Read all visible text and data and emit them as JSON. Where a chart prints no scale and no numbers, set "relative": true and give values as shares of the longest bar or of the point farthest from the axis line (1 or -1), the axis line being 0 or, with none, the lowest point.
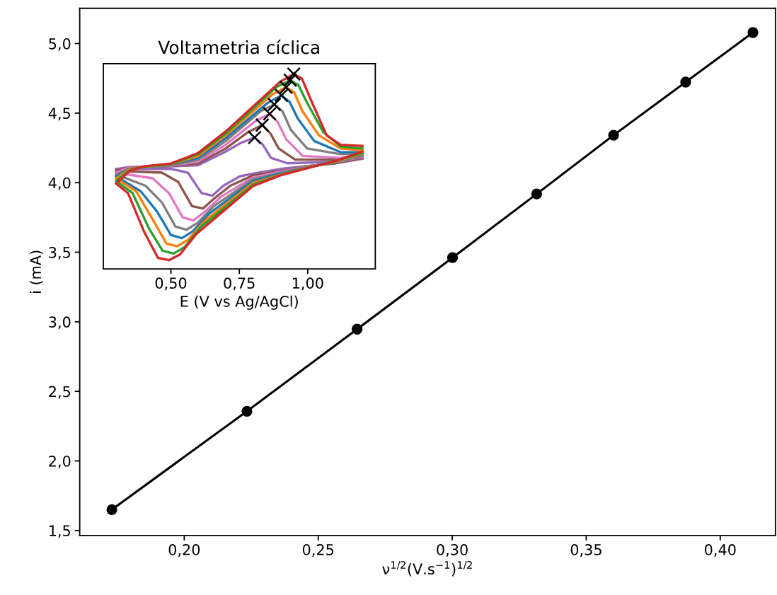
{
  "chart_data": [
    {
      "type": "line",
      "xlabel": "ν$^{1/2}$(V.s$^{−1}$)$^{1/2}$",
      "ylabel": "i (mA)",
      "xlim": [
        0.161,
        0.4206
      ],
      "ylim": [
        1.464,
        5.253
      ],
      "xticks": [
        {
          "value": 0.2,
          "label": "0,20"
        },
        {
          "value": 0.25,
          "label": "0,25"
        },
        {
          "value": 0.3,
          "label": "0,30"
        },
        {
          "value": 0.35,
          "label": "0,35"
        },
        {
          "value": 0.4,
          "label": "0,40"
        }
      ],
      "yticks": [
        {
          "value": 1.5,
          "label": "1,5"
        },
        {
          "value": 2.0,
          "label": "2,0"
        },
        {
          "value": 2.5,
          "label": "2,5"
        },
        {
          "value": 3.0,
          "label": "3,0"
        },
        {
          "value": 3.5,
          "label": "3,5"
        },
        {
          "value": 4.0,
          "label": "4,0"
        },
        {
          "value": 4.5,
          "label": "4,5"
        },
        {
          "value": 5.0,
          "label": "5,0"
        }
      ],
      "grid": false,
      "marker": "circle",
      "line_style": "solid",
      "series": [
        {
          "color": "#000000",
          "x": [
            0.173,
            0.2234,
            0.2645,
            0.3001,
            0.3315,
            0.3602,
            0.3871,
            0.4122
          ],
          "values": [
            1.65,
            2.357,
            2.947,
            3.461,
            3.919,
            4.341,
            4.723,
            5.079
          ]
        }
      ]
    },
    {
      "type": "line",
      "title": "Voltametria cíclica",
      "xlabel": "E (V vs Ag/AgCl)",
      "relative": true,
      "xlim": [
        0.253,
        1.247
      ],
      "xticks": [
        {
          "value": 0.5,
          "label": "0,50"
        },
        {
          "value": 0.75,
          "label": "0,75"
        },
        {
          "value": 1.0,
          "label": "1,00"
        }
      ],
      "tick_labels": "x",
      "grid": false,
      "marker": "none",
      "line_style": "solid",
      "series": [
        {
          "color": "#9467bd",
          "x": [
            0.3,
            0.35,
            0.4,
            0.5,
            0.6,
            0.7,
            0.756,
            0.806,
            0.836,
            0.866,
            0.926,
            1.12,
            1.2
          ],
          "values": [
            0.513,
            0.523,
            0.523,
            0.526,
            0.532,
            0.602,
            0.647,
            0.674,
            0.637,
            0.57,
            0.542,
            0.551,
            0.58
          ]
        },
        {
          "color": "#9467bd",
          "x": [
            0.3,
            0.502,
            0.562,
            0.612,
            0.652,
            0.692,
            0.752,
            0.8,
            0.9,
            1.0,
            1.1,
            1.2
          ],
          "values": [
            0.513,
            0.513,
            0.494,
            0.389,
            0.376,
            0.427,
            0.475,
            0.489,
            0.513,
            0.528,
            0.542,
            0.565
          ]
        },
        {
          "color": "#8c564b",
          "x": [
            0.3,
            0.35,
            0.4,
            0.5,
            0.6,
            0.7,
            0.784,
            0.834,
            0.864,
            0.894,
            0.954,
            1.12,
            1.2
          ],
          "values": [
            0.503,
            0.523,
            0.523,
            0.528,
            0.542,
            0.618,
            0.704,
            0.738,
            0.694,
            0.618,
            0.561,
            0.561,
            0.585
          ]
        },
        {
          "color": "#8c564b",
          "x": [
            0.3,
            0.467,
            0.527,
            0.577,
            0.617,
            0.657,
            0.717,
            0.8,
            0.9,
            1.0,
            1.1,
            1.2
          ],
          "values": [
            0.503,
            0.494,
            0.446,
            0.322,
            0.31,
            0.36,
            0.427,
            0.48,
            0.503,
            0.527,
            0.542,
            0.57
          ]
        },
        {
          "color": "#e377c2",
          "x": [
            0.3,
            0.35,
            0.4,
            0.5,
            0.6,
            0.7,
            0.811,
            0.861,
            0.891,
            0.921,
            0.981,
            1.12,
            1.2
          ],
          "values": [
            0.494,
            0.523,
            0.523,
            0.53,
            0.551,
            0.637,
            0.761,
            0.796,
            0.752,
            0.666,
            0.58,
            0.57,
            0.589
          ]
        },
        {
          "color": "#e377c2",
          "x": [
            0.3,
            0.433,
            0.493,
            0.543,
            0.583,
            0.623,
            0.683,
            0.8,
            0.9,
            1.0,
            1.1,
            1.2
          ],
          "values": [
            0.494,
            0.465,
            0.389,
            0.265,
            0.249,
            0.293,
            0.37,
            0.47,
            0.499,
            0.525,
            0.546,
            0.575
          ]
        },
        {
          "color": "#7f7f7f",
          "x": [
            0.3,
            0.35,
            0.4,
            0.5,
            0.6,
            0.7,
            0.828,
            0.878,
            0.908,
            0.938,
            0.998,
            1.12,
            1.2
          ],
          "values": [
            0.484,
            0.518,
            0.523,
            0.532,
            0.561,
            0.656,
            0.809,
            0.844,
            0.809,
            0.714,
            0.618,
            0.589,
            0.594
          ]
        },
        {
          "color": "#7f7f7f",
          "x": [
            0.3,
            0.407,
            0.467,
            0.517,
            0.557,
            0.597,
            0.657,
            0.8,
            0.9,
            1.0,
            1.1,
            1.2
          ],
          "values": [
            0.484,
            0.427,
            0.341,
            0.217,
            0.201,
            0.236,
            0.322,
            0.46,
            0.494,
            0.523,
            0.546,
            0.58
          ]
        },
        {
          "color": "#1f77b4",
          "x": [
            0.3,
            0.35,
            0.4,
            0.5,
            0.6,
            0.7,
            0.854,
            0.904,
            0.934,
            0.964,
            1.024,
            1.12,
            1.2
          ],
          "values": [
            0.475,
            0.513,
            0.523,
            0.534,
            0.57,
            0.671,
            0.852,
            0.89,
            0.857,
            0.771,
            0.656,
            0.599,
            0.599
          ]
        },
        {
          "color": "#1f77b4",
          "x": [
            0.3,
            0.39,
            0.45,
            0.5,
            0.54,
            0.58,
            0.64,
            0.8,
            0.9,
            1.0,
            1.1,
            1.2
          ],
          "values": [
            0.475,
            0.398,
            0.293,
            0.174,
            0.158,
            0.193,
            0.284,
            0.451,
            0.489,
            0.523,
            0.551,
            0.585
          ]
        },
        {
          "color": "#ff7f0e",
          "x": [
            0.3,
            0.35,
            0.4,
            0.5,
            0.6,
            0.7,
            0.871,
            0.921,
            0.951,
            0.981,
            1.041,
            1.12,
            1.2
          ],
          "values": [
            0.465,
            0.513,
            0.523,
            0.536,
            0.58,
            0.685,
            0.895,
            0.932,
            0.905,
            0.809,
            0.685,
            0.618,
            0.608
          ]
        },
        {
          "color": "#ff7f0e",
          "x": [
            0.3,
            0.373,
            0.433,
            0.483,
            0.523,
            0.563,
            0.623,
            0.8,
            0.9,
            1.0,
            1.1,
            1.2
          ],
          "values": [
            0.465,
            0.398,
            0.255,
            0.131,
            0.116,
            0.15,
            0.246,
            0.441,
            0.484,
            0.521,
            0.551,
            0.589
          ]
        },
        {
          "color": "#2ca02c",
          "x": [
            0.3,
            0.35,
            0.4,
            0.5,
            0.6,
            0.7,
            0.886,
            0.936,
            0.966,
            0.996,
            1.056,
            1.12,
            1.2
          ],
          "values": [
            0.451,
            0.508,
            0.524,
            0.538,
            0.589,
            0.694,
            0.933,
            0.968,
            0.943,
            0.857,
            0.704,
            0.628,
            0.618
          ]
        },
        {
          "color": "#2ca02c",
          "x": [
            0.3,
            0.36,
            0.42,
            0.47,
            0.51,
            0.55,
            0.61,
            0.8,
            0.9,
            1.0,
            1.1,
            1.2
          ],
          "values": [
            0.451,
            0.389,
            0.207,
            0.093,
            0.079,
            0.112,
            0.217,
            0.432,
            0.482,
            0.519,
            0.553,
            0.594
          ]
        },
        {
          "color": "#d62728",
          "x": [
            0.3,
            0.35,
            0.4,
            0.5,
            0.6,
            0.7,
            0.899,
            0.949,
            0.979,
            1.009,
            1.069,
            1.12,
            1.2
          ],
          "values": [
            0.438,
            0.504,
            0.526,
            0.541,
            0.595,
            0.705,
            0.96,
            1.0,
            0.976,
            0.876,
            0.685,
            0.637,
            0.631
          ]
        },
        {
          "color": "#d62728",
          "x": [
            0.3,
            0.343,
            0.403,
            0.453,
            0.493,
            0.533,
            0.593,
            0.8,
            0.9,
            1.0,
            1.1,
            1.2
          ],
          "values": [
            0.438,
            0.389,
            0.188,
            0.056,
            0.045,
            0.074,
            0.179,
            0.425,
            0.48,
            0.517,
            0.553,
            0.602
          ]
        },
        {
          "type": "scatter",
          "marker": "cross",
          "color": "#000000",
          "x": [
            0.806,
            0.834,
            0.861,
            0.878,
            0.904,
            0.921,
            0.936,
            0.949
          ],
          "values": [
            0.674,
            0.738,
            0.796,
            0.844,
            0.89,
            0.932,
            0.968,
            1.0
          ]
        }
      ]
    }
  ]
}
